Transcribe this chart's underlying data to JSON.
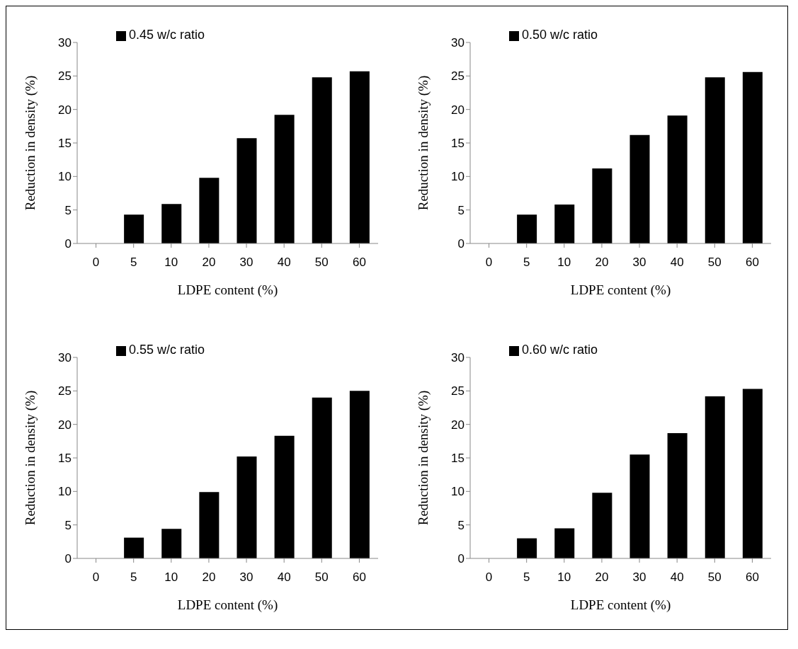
{
  "chart_data": [
    {
      "type": "bar",
      "xlabel": "LDPE content (%)",
      "ylabel": "Reduction in density (%)",
      "categories": [
        "0",
        "5",
        "10",
        "20",
        "30",
        "40",
        "50",
        "60"
      ],
      "series": [
        {
          "name": "0.45 w/c ratio",
          "color": "#000000",
          "values": [
            0,
            4.3,
            5.9,
            9.8,
            15.7,
            19.2,
            24.8,
            25.7
          ]
        }
      ],
      "ylim": [
        0,
        30
      ],
      "yticks": [
        0,
        5,
        10,
        15,
        20,
        25,
        30
      ],
      "legend": "top left"
    },
    {
      "type": "bar",
      "xlabel": "LDPE content (%)",
      "ylabel": "Reduction in density (%)",
      "categories": [
        "0",
        "5",
        "10",
        "20",
        "30",
        "40",
        "50",
        "60"
      ],
      "series": [
        {
          "name": "0.50 w/c ratio",
          "color": "#000000",
          "values": [
            0,
            4.3,
            5.8,
            11.2,
            16.2,
            19.1,
            24.8,
            25.6
          ]
        }
      ],
      "ylim": [
        0,
        30
      ],
      "yticks": [
        0,
        5,
        10,
        15,
        20,
        25,
        30
      ],
      "legend": "top left"
    },
    {
      "type": "bar",
      "xlabel": "LDPE content (%)",
      "ylabel": "Reduction in density (%)",
      "categories": [
        "0",
        "5",
        "10",
        "20",
        "30",
        "40",
        "50",
        "60"
      ],
      "series": [
        {
          "name": "0.55 w/c ratio",
          "color": "#000000",
          "values": [
            0,
            3.1,
            4.4,
            9.9,
            15.2,
            18.3,
            24.0,
            25.0
          ]
        }
      ],
      "ylim": [
        0,
        30
      ],
      "yticks": [
        0,
        5,
        10,
        15,
        20,
        25,
        30
      ],
      "legend": "top left"
    },
    {
      "type": "bar",
      "xlabel": "LDPE content (%)",
      "ylabel": "Reduction in density (%)",
      "categories": [
        "0",
        "5",
        "10",
        "20",
        "30",
        "40",
        "50",
        "60"
      ],
      "series": [
        {
          "name": "0.60 w/c ratio",
          "color": "#000000",
          "values": [
            0,
            3.0,
            4.5,
            9.8,
            15.5,
            18.7,
            24.2,
            25.3
          ]
        }
      ],
      "ylim": [
        0,
        30
      ],
      "yticks": [
        0,
        5,
        10,
        15,
        20,
        25,
        30
      ],
      "legend": "top left"
    }
  ]
}
